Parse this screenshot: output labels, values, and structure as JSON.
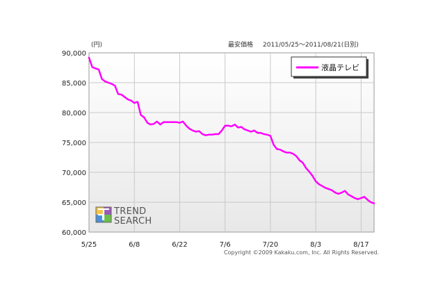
{
  "header": {
    "unit": "(円)",
    "title_left": "最安価格",
    "title_range": "2011/05/25～2011/08/21(日別)"
  },
  "legend": {
    "label": "液晶テレビ"
  },
  "logo": {
    "line1": "TREND",
    "line2": "SEARCH"
  },
  "copyright": "Copyright ©2009 Kakaku.com, Inc. All Rights Reserved.",
  "colors": {
    "series": "#ff00ff",
    "plot_bg_top": "#ffffff",
    "plot_bg_bottom": "#e8e8e8",
    "grid": "#c8c8c8"
  },
  "chart_data": {
    "type": "line",
    "title": "最安価格 2011/05/25～2011/08/21(日別)",
    "ylabel": "(円)",
    "xlabel": "",
    "x_ticks": [
      "5/25",
      "6/8",
      "6/22",
      "7/6",
      "7/20",
      "8/3",
      "8/17"
    ],
    "y_ticks": [
      "90,000",
      "85,000",
      "80,000",
      "75,000",
      "70,000",
      "65,000",
      "60,000"
    ],
    "y_tick_values": [
      90000,
      85000,
      80000,
      75000,
      70000,
      65000,
      60000
    ],
    "ylim": [
      60000,
      90000
    ],
    "x_range_days": [
      0,
      88
    ],
    "grid": true,
    "legend_position": "top-right",
    "series": [
      {
        "name": "液晶テレビ",
        "points": [
          [
            0,
            89200
          ],
          [
            1,
            87600
          ],
          [
            2,
            87400
          ],
          [
            3,
            87200
          ],
          [
            4,
            85600
          ],
          [
            5,
            85200
          ],
          [
            6,
            85000
          ],
          [
            7,
            84800
          ],
          [
            8,
            84500
          ],
          [
            9,
            83100
          ],
          [
            10,
            83000
          ],
          [
            11,
            82600
          ],
          [
            12,
            82200
          ],
          [
            13,
            82000
          ],
          [
            14,
            81600
          ],
          [
            15,
            81800
          ],
          [
            16,
            79600
          ],
          [
            17,
            79200
          ],
          [
            18,
            78300
          ],
          [
            19,
            78000
          ],
          [
            20,
            78100
          ],
          [
            21,
            78500
          ],
          [
            22,
            78000
          ],
          [
            23,
            78400
          ],
          [
            24,
            78400
          ],
          [
            25,
            78400
          ],
          [
            26,
            78400
          ],
          [
            27,
            78400
          ],
          [
            28,
            78300
          ],
          [
            29,
            78500
          ],
          [
            30,
            77800
          ],
          [
            31,
            77300
          ],
          [
            32,
            77000
          ],
          [
            33,
            76800
          ],
          [
            34,
            76900
          ],
          [
            35,
            76400
          ],
          [
            36,
            76200
          ],
          [
            37,
            76300
          ],
          [
            38,
            76300
          ],
          [
            39,
            76400
          ],
          [
            40,
            76400
          ],
          [
            41,
            77000
          ],
          [
            42,
            77800
          ],
          [
            43,
            77800
          ],
          [
            44,
            77700
          ],
          [
            45,
            78000
          ],
          [
            46,
            77500
          ],
          [
            47,
            77600
          ],
          [
            48,
            77200
          ],
          [
            49,
            77000
          ],
          [
            50,
            76800
          ],
          [
            51,
            77000
          ],
          [
            52,
            76600
          ],
          [
            53,
            76600
          ],
          [
            54,
            76400
          ],
          [
            55,
            76300
          ],
          [
            56,
            76100
          ],
          [
            57,
            74600
          ],
          [
            58,
            73900
          ],
          [
            59,
            73800
          ],
          [
            60,
            73500
          ],
          [
            61,
            73300
          ],
          [
            62,
            73300
          ],
          [
            63,
            73100
          ],
          [
            64,
            72700
          ],
          [
            65,
            72000
          ],
          [
            66,
            71600
          ],
          [
            67,
            70700
          ],
          [
            68,
            70100
          ],
          [
            69,
            69400
          ],
          [
            70,
            68500
          ],
          [
            71,
            68000
          ],
          [
            72,
            67700
          ],
          [
            73,
            67400
          ],
          [
            74,
            67200
          ],
          [
            75,
            67000
          ],
          [
            76,
            66600
          ],
          [
            77,
            66400
          ],
          [
            78,
            66600
          ],
          [
            79,
            66900
          ],
          [
            80,
            66300
          ],
          [
            81,
            66000
          ],
          [
            82,
            65700
          ],
          [
            83,
            65500
          ],
          [
            84,
            65700
          ],
          [
            85,
            65900
          ],
          [
            86,
            65400
          ],
          [
            87,
            65000
          ],
          [
            88,
            64800
          ]
        ]
      }
    ]
  }
}
